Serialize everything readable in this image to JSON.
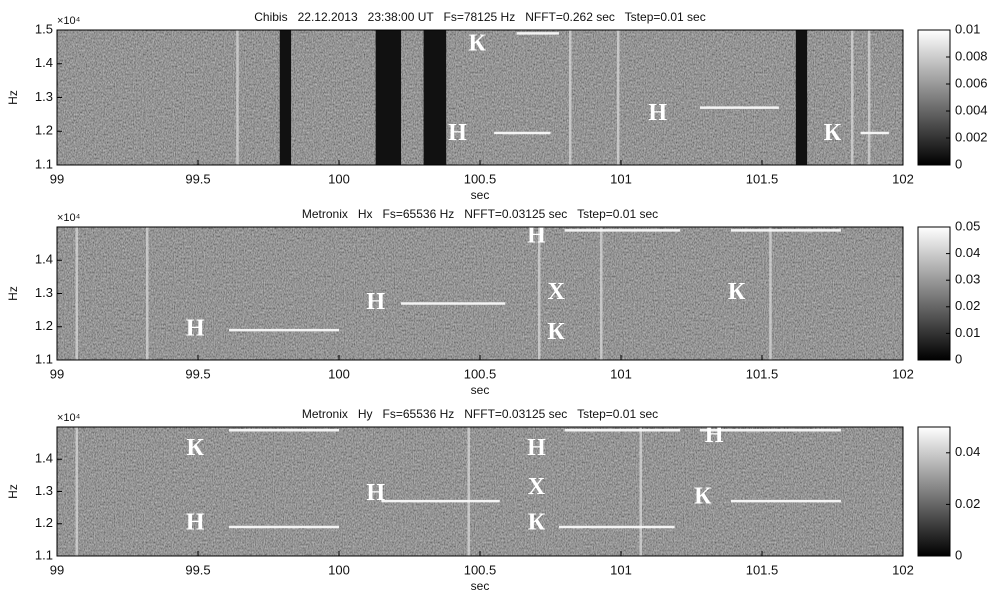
{
  "chart_data": [
    {
      "type": "spectrogram",
      "title": "Chibis   22.12.2013   23:38:00 UT   Fs=78125 Hz   NFFT=0.262 sec   Tstep=0.01 sec",
      "xlabel": "sec",
      "ylabel": "Hz",
      "y_multiplier": "×10⁴",
      "xlim": [
        99,
        102
      ],
      "xticks": [
        99,
        99.5,
        100,
        100.5,
        101,
        101.5,
        102
      ],
      "ylim": [
        1.1,
        1.5
      ],
      "yticks": [
        1.1,
        1.2,
        1.3,
        1.4,
        1.5
      ],
      "clim": [
        0,
        0.01
      ],
      "cticks": [
        0,
        0.002,
        0.004,
        0.006,
        0.008,
        0.01
      ],
      "gaps": [
        [
          99.79,
          99.83
        ],
        [
          100.13,
          100.22
        ],
        [
          100.3,
          100.38
        ],
        [
          101.62,
          101.66
        ]
      ],
      "pulses": [
        99.64,
        100.82,
        100.99,
        101.82,
        101.88
      ],
      "tones": [
        {
          "x": [
            100.63,
            100.78
          ],
          "y": 1.49
        },
        {
          "x": [
            101.28,
            101.56
          ],
          "y": 1.27
        },
        {
          "x": [
            101.85,
            101.95
          ],
          "y": 1.195
        },
        {
          "x": [
            100.55,
            100.75
          ],
          "y": 1.195
        }
      ],
      "annotations": [
        {
          "text": "К",
          "x": 100.49,
          "y": 1.456
        },
        {
          "text": "Н",
          "x": 100.42,
          "y": 1.19
        },
        {
          "text": "Н",
          "x": 101.13,
          "y": 1.25
        },
        {
          "text": "К",
          "x": 101.75,
          "y": 1.19
        }
      ]
    },
    {
      "type": "spectrogram",
      "title": "Metronix   Hx   Fs=65536 Hz   NFFT=0.03125 sec   Tstep=0.01 sec",
      "xlabel": "sec",
      "ylabel": "Hz",
      "y_multiplier": "×10⁴",
      "xlim": [
        99,
        102
      ],
      "xticks": [
        99,
        99.5,
        100,
        100.5,
        101,
        101.5,
        102
      ],
      "ylim": [
        1.1,
        1.5
      ],
      "yticks": [
        1.1,
        1.2,
        1.3,
        1.4
      ],
      "clim": [
        0,
        0.05
      ],
      "cticks": [
        0,
        0.01,
        0.02,
        0.03,
        0.04,
        0.05
      ],
      "gaps": [],
      "pulses": [
        99.07,
        99.32,
        100.71,
        100.93,
        101.53
      ],
      "tones": [
        {
          "x": [
            99.61,
            100.0
          ],
          "y": 1.19
        },
        {
          "x": [
            100.22,
            100.59
          ],
          "y": 1.27
        },
        {
          "x": [
            100.8,
            101.21
          ],
          "y": 1.49
        },
        {
          "x": [
            101.39,
            101.78
          ],
          "y": 1.49
        }
      ],
      "annotations": [
        {
          "text": "Н",
          "x": 99.49,
          "y": 1.19
        },
        {
          "text": "Н",
          "x": 100.13,
          "y": 1.27
        },
        {
          "text": "Н",
          "x": 100.7,
          "y": 1.47
        },
        {
          "text": "Х",
          "x": 100.77,
          "y": 1.3
        },
        {
          "text": "К",
          "x": 100.77,
          "y": 1.18
        },
        {
          "text": "К",
          "x": 101.41,
          "y": 1.3
        }
      ]
    },
    {
      "type": "spectrogram",
      "title": "Metronix   Hy   Fs=65536 Hz   NFFT=0.03125 sec   Tstep=0.01 sec",
      "xlabel": "sec",
      "ylabel": "Hz",
      "y_multiplier": "×10⁴",
      "xlim": [
        99,
        102
      ],
      "xticks": [
        99,
        99.5,
        100,
        100.5,
        101,
        101.5,
        102
      ],
      "ylim": [
        1.1,
        1.5
      ],
      "yticks": [
        1.1,
        1.2,
        1.3,
        1.4
      ],
      "clim": [
        0,
        0.05
      ],
      "cticks": [
        0,
        0.02,
        0.04
      ],
      "gaps": [],
      "pulses": [
        99.07,
        100.46,
        101.07
      ],
      "tones": [
        {
          "x": [
            99.61,
            100.0
          ],
          "y": 1.49
        },
        {
          "x": [
            99.61,
            100.0
          ],
          "y": 1.19
        },
        {
          "x": [
            100.78,
            101.19
          ],
          "y": 1.19
        },
        {
          "x": [
            101.39,
            101.78
          ],
          "y": 1.27
        },
        {
          "x": [
            100.15,
            100.57
          ],
          "y": 1.27
        },
        {
          "x": [
            100.8,
            101.21
          ],
          "y": 1.49
        },
        {
          "x": [
            101.28,
            101.78
          ],
          "y": 1.49
        }
      ],
      "annotations": [
        {
          "text": "К",
          "x": 99.49,
          "y": 1.43
        },
        {
          "text": "Н",
          "x": 99.49,
          "y": 1.2
        },
        {
          "text": "Н",
          "x": 100.13,
          "y": 1.29
        },
        {
          "text": "Н",
          "x": 100.7,
          "y": 1.43
        },
        {
          "text": "Х",
          "x": 100.7,
          "y": 1.31
        },
        {
          "text": "К",
          "x": 100.7,
          "y": 1.2
        },
        {
          "text": "Н",
          "x": 101.33,
          "y": 1.47
        },
        {
          "text": "К",
          "x": 101.29,
          "y": 1.28
        }
      ]
    }
  ]
}
